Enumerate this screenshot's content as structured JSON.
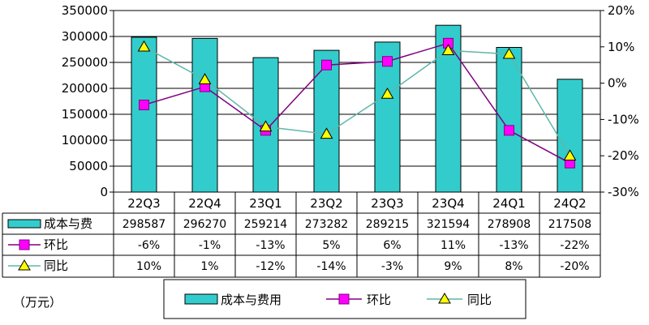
{
  "chart_data": {
    "type": "bar",
    "categories": [
      "22Q3",
      "22Q4",
      "23Q1",
      "23Q2",
      "23Q3",
      "23Q4",
      "24Q1",
      "24Q2"
    ],
    "left_axis": {
      "ylim": [
        0,
        350000
      ],
      "ticks": [
        "0",
        "50000",
        "100000",
        "150000",
        "200000",
        "250000",
        "300000",
        "350000"
      ]
    },
    "right_axis": {
      "ylim": [
        -30,
        20
      ],
      "ticks": [
        "-30%",
        "-20%",
        "-10%",
        "0%",
        "10%",
        "20%"
      ]
    },
    "unit_label": "（万元）",
    "grid": true,
    "series": [
      {
        "name": "成本与费用",
        "table_name": "成本与费",
        "type": "bar",
        "axis": "left",
        "color": "#33CCCC",
        "values": [
          298587,
          296270,
          259214,
          273282,
          289215,
          321594,
          278908,
          217508
        ],
        "labels": [
          "298587",
          "296270",
          "259214",
          "273282",
          "289215",
          "321594",
          "278908",
          "217508"
        ]
      },
      {
        "name": "环比",
        "type": "line",
        "axis": "right",
        "color": "#FF00FF",
        "line_color": "#800080",
        "marker": "square",
        "values": [
          -6,
          -1,
          -13,
          5,
          6,
          11,
          -13,
          -22
        ],
        "labels": [
          "-6%",
          "-1%",
          "-13%",
          "5%",
          "6%",
          "11%",
          "-13%",
          "-22%"
        ]
      },
      {
        "name": "同比",
        "type": "line",
        "axis": "right",
        "color": "#FFFF00",
        "line_color": "#5FB7A8",
        "marker": "triangle",
        "values": [
          10,
          1,
          -12,
          -14,
          -3,
          9,
          8,
          -20
        ],
        "labels": [
          "10%",
          "1%",
          "-12%",
          "-14%",
          "-3%",
          "9%",
          "8%",
          "-20%"
        ]
      }
    ],
    "legend": {
      "position": "bottom"
    }
  }
}
